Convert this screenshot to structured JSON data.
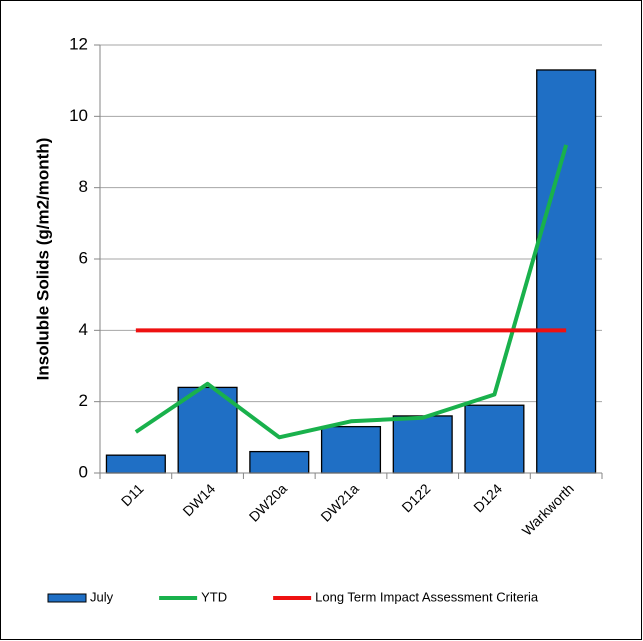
{
  "chart_data": {
    "type": "bar",
    "y_label": "Insoluble Solids (g/m2/month)",
    "categories": [
      "D11",
      "DW14",
      "DW20a",
      "DW21a",
      "D122",
      "D124",
      "Warkworth"
    ],
    "series": [
      {
        "name": "July",
        "type": "bar",
        "color": "#1f6fc5",
        "values": [
          0.5,
          2.4,
          0.6,
          1.3,
          1.6,
          1.9,
          11.3
        ]
      },
      {
        "name": "YTD",
        "type": "line",
        "color": "#19b14c",
        "values": [
          1.15,
          2.5,
          1.0,
          1.45,
          1.55,
          2.2,
          9.2
        ]
      },
      {
        "name": "Long Term Impact Assessment Criteria",
        "type": "line",
        "color": "#ee1111",
        "values": [
          4,
          4,
          4,
          4,
          4,
          4,
          4
        ]
      }
    ],
    "ylim": [
      0,
      12
    ],
    "yticks": [
      0,
      2,
      4,
      6,
      8,
      10,
      12
    ],
    "grid": true,
    "legend": "bottom"
  }
}
